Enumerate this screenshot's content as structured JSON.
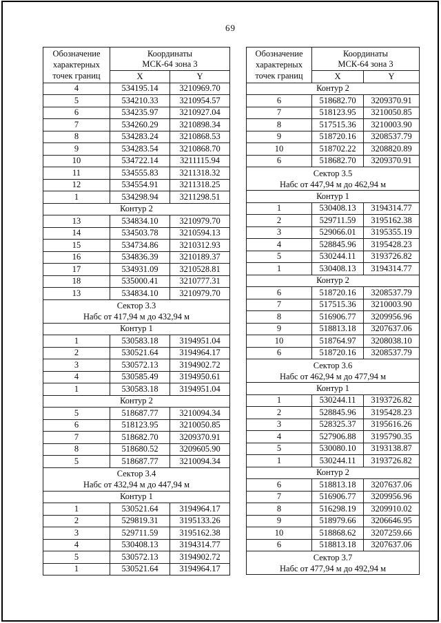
{
  "page": {
    "number": "69"
  },
  "tables": [
    {
      "id": "left",
      "header": {
        "designation": "Обозначение характерных точек границ",
        "coords_line1": "Координаты",
        "coords_line2": "МСК-64 зона 3",
        "x": "X",
        "y": "Y"
      },
      "rows": [
        {
          "t": "p",
          "n": "4",
          "x": "534195.14",
          "y": "3210969.70"
        },
        {
          "t": "p",
          "n": "5",
          "x": "534210.33",
          "y": "3210954.57"
        },
        {
          "t": "p",
          "n": "6",
          "x": "534235.97",
          "y": "3210927.04"
        },
        {
          "t": "p",
          "n": "7",
          "x": "534260.29",
          "y": "3210898.34"
        },
        {
          "t": "p",
          "n": "8",
          "x": "534283.24",
          "y": "3210868.53"
        },
        {
          "t": "p",
          "n": "9",
          "x": "534283.54",
          "y": "3210868.70"
        },
        {
          "t": "p",
          "n": "10",
          "x": "534722.14",
          "y": "3211115.94"
        },
        {
          "t": "p",
          "n": "11",
          "x": "534555.83",
          "y": "3211318.32"
        },
        {
          "t": "p",
          "n": "12",
          "x": "534554.91",
          "y": "3211318.25"
        },
        {
          "t": "p",
          "n": "1",
          "x": "534298.94",
          "y": "3211298.51"
        },
        {
          "t": "s",
          "text": "Контур 2"
        },
        {
          "t": "p",
          "n": "13",
          "x": "534834.10",
          "y": "3210979.70"
        },
        {
          "t": "p",
          "n": "14",
          "x": "534503.78",
          "y": "3210594.13"
        },
        {
          "t": "p",
          "n": "15",
          "x": "534734.86",
          "y": "3210312.93"
        },
        {
          "t": "p",
          "n": "16",
          "x": "534836.39",
          "y": "3210189.37"
        },
        {
          "t": "p",
          "n": "17",
          "x": "534931.09",
          "y": "3210528.81"
        },
        {
          "t": "p",
          "n": "18",
          "x": "535000.41",
          "y": "3210777.31"
        },
        {
          "t": "p",
          "n": "13",
          "x": "534834.10",
          "y": "3210979.70"
        },
        {
          "t": "s2",
          "line1": "Сектор 3.3",
          "line2": "Набс от 417,94 м до 432,94 м"
        },
        {
          "t": "s",
          "text": "Контур 1"
        },
        {
          "t": "p",
          "n": "1",
          "x": "530583.18",
          "y": "3194951.04"
        },
        {
          "t": "p",
          "n": "2",
          "x": "530521.64",
          "y": "3194964.17"
        },
        {
          "t": "p",
          "n": "3",
          "x": "530572.13",
          "y": "3194902.72"
        },
        {
          "t": "p",
          "n": "4",
          "x": "530585.49",
          "y": "3194950.61"
        },
        {
          "t": "p",
          "n": "1",
          "x": "530583.18",
          "y": "3194951.04"
        },
        {
          "t": "s",
          "text": "Контур 2"
        },
        {
          "t": "p",
          "n": "5",
          "x": "518687.77",
          "y": "3210094.34"
        },
        {
          "t": "p",
          "n": "6",
          "x": "518123.95",
          "y": "3210050.85"
        },
        {
          "t": "p",
          "n": "7",
          "x": "518682.70",
          "y": "3209370.91"
        },
        {
          "t": "p",
          "n": "8",
          "x": "518680.52",
          "y": "3209605.90"
        },
        {
          "t": "p",
          "n": "5",
          "x": "518687.77",
          "y": "3210094.34"
        },
        {
          "t": "s2",
          "line1": "Сектор 3.4",
          "line2": "Набс от 432,94 м до 447,94 м"
        },
        {
          "t": "s",
          "text": "Контур 1"
        },
        {
          "t": "p",
          "n": "1",
          "x": "530521.64",
          "y": "3194964.17"
        },
        {
          "t": "p",
          "n": "2",
          "x": "529819.31",
          "y": "3195133.26"
        },
        {
          "t": "p",
          "n": "3",
          "x": "529711.59",
          "y": "3195162.38"
        },
        {
          "t": "p",
          "n": "4",
          "x": "530408.13",
          "y": "3194314.77"
        },
        {
          "t": "p",
          "n": "5",
          "x": "530572.13",
          "y": "3194902.72"
        },
        {
          "t": "p",
          "n": "1",
          "x": "530521.64",
          "y": "3194964.17"
        }
      ]
    },
    {
      "id": "right",
      "header": {
        "designation": "Обозначение характерных точек границ",
        "coords_line1": "Координаты",
        "coords_line2": "МСК-64 зона 3",
        "x": "X",
        "y": "Y"
      },
      "rows": [
        {
          "t": "s",
          "text": "Контур 2"
        },
        {
          "t": "p",
          "n": "6",
          "x": "518682.70",
          "y": "3209370.91"
        },
        {
          "t": "p",
          "n": "7",
          "x": "518123.95",
          "y": "3210050.85"
        },
        {
          "t": "p",
          "n": "8",
          "x": "517515.36",
          "y": "3210003.90"
        },
        {
          "t": "p",
          "n": "9",
          "x": "518720.16",
          "y": "3208537.79"
        },
        {
          "t": "p",
          "n": "10",
          "x": "518702.22",
          "y": "3208820.89"
        },
        {
          "t": "p",
          "n": "6",
          "x": "518682.70",
          "y": "3209370.91"
        },
        {
          "t": "s2",
          "line1": "Сектор 3.5",
          "line2": "Набс от 447,94 м до 462,94 м"
        },
        {
          "t": "s",
          "text": "Контур 1"
        },
        {
          "t": "p",
          "n": "1",
          "x": "530408.13",
          "y": "3194314.77"
        },
        {
          "t": "p",
          "n": "2",
          "x": "529711.59",
          "y": "3195162.38"
        },
        {
          "t": "p",
          "n": "3",
          "x": "529066.01",
          "y": "3195355.19"
        },
        {
          "t": "p",
          "n": "4",
          "x": "528845.96",
          "y": "3195428.23"
        },
        {
          "t": "p",
          "n": "5",
          "x": "530244.11",
          "y": "3193726.82"
        },
        {
          "t": "p",
          "n": "1",
          "x": "530408.13",
          "y": "3194314.77"
        },
        {
          "t": "s",
          "text": "Контур 2"
        },
        {
          "t": "p",
          "n": "6",
          "x": "518720.16",
          "y": "3208537.79"
        },
        {
          "t": "p",
          "n": "7",
          "x": "517515.36",
          "y": "3210003.90"
        },
        {
          "t": "p",
          "n": "8",
          "x": "516906.77",
          "y": "3209956.96"
        },
        {
          "t": "p",
          "n": "9",
          "x": "518813.18",
          "y": "3207637.06"
        },
        {
          "t": "p",
          "n": "10",
          "x": "518764.97",
          "y": "3208038.10"
        },
        {
          "t": "p",
          "n": "6",
          "x": "518720.16",
          "y": "3208537.79"
        },
        {
          "t": "s2",
          "line1": "Сектор 3.6",
          "line2": "Набс от 462,94 м до 477,94 м"
        },
        {
          "t": "s",
          "text": "Контур 1"
        },
        {
          "t": "p",
          "n": "1",
          "x": "530244.11",
          "y": "3193726.82"
        },
        {
          "t": "p",
          "n": "2",
          "x": "528845.96",
          "y": "3195428.23"
        },
        {
          "t": "p",
          "n": "3",
          "x": "528325.37",
          "y": "3195616.26"
        },
        {
          "t": "p",
          "n": "4",
          "x": "527906.88",
          "y": "3195790.35"
        },
        {
          "t": "p",
          "n": "5",
          "x": "530080.10",
          "y": "3193138.87"
        },
        {
          "t": "p",
          "n": "1",
          "x": "530244.11",
          "y": "3193726.82"
        },
        {
          "t": "s",
          "text": "Контур 2"
        },
        {
          "t": "p",
          "n": "6",
          "x": "518813.18",
          "y": "3207637.06"
        },
        {
          "t": "p",
          "n": "7",
          "x": "516906.77",
          "y": "3209956.96"
        },
        {
          "t": "p",
          "n": "8",
          "x": "516298.19",
          "y": "3209910.02"
        },
        {
          "t": "p",
          "n": "9",
          "x": "518979.66",
          "y": "3206646.95"
        },
        {
          "t": "p",
          "n": "10",
          "x": "518868.62",
          "y": "3207259.66"
        },
        {
          "t": "p",
          "n": "6",
          "x": "518813.18",
          "y": "3207637.06"
        },
        {
          "t": "s2",
          "line1": "Сектор 3.7",
          "line2": "Набс от 477,94 м до 492,94 м"
        }
      ]
    }
  ]
}
